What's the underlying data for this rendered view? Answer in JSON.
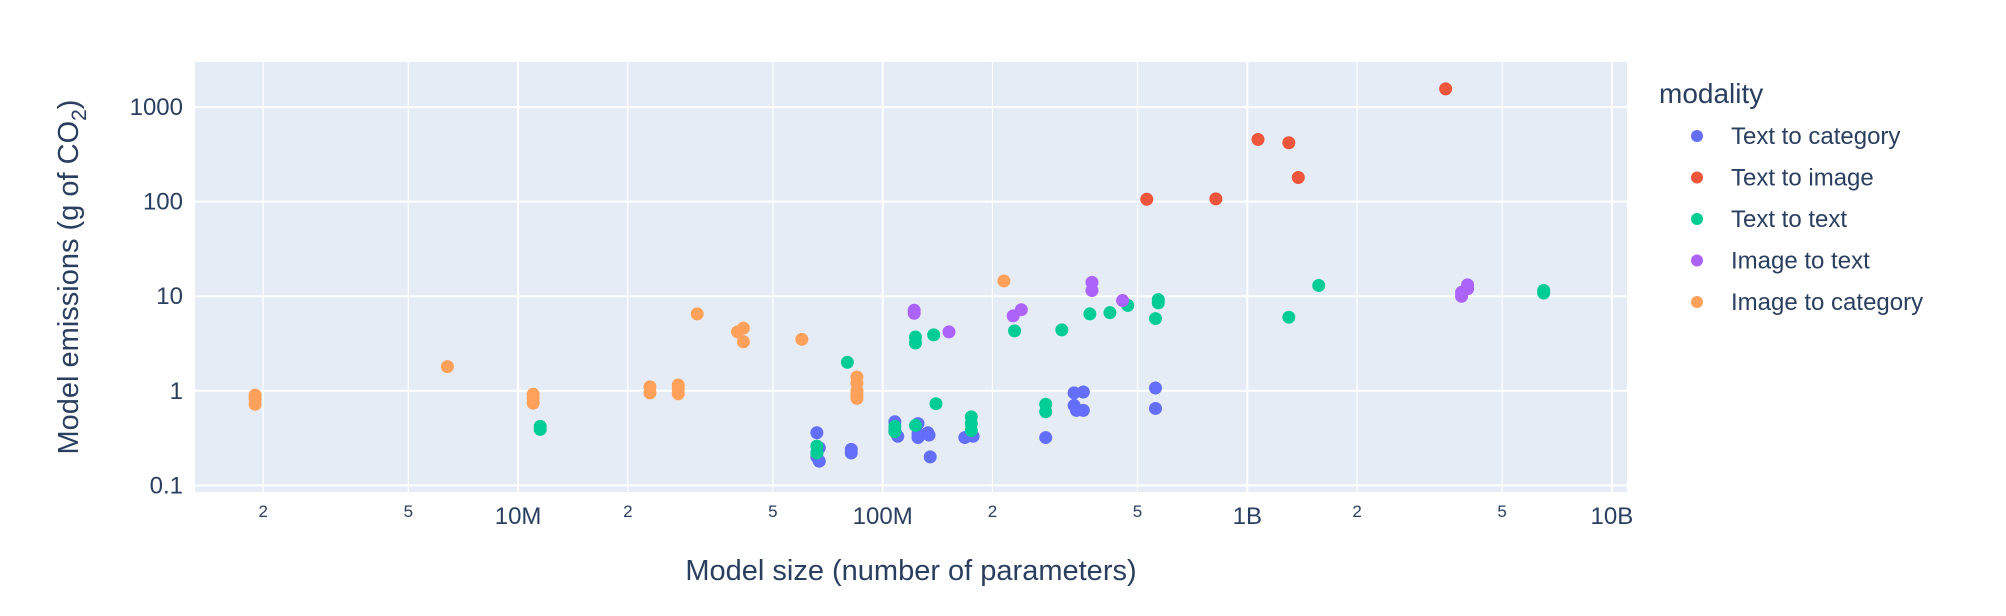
{
  "chart_data": {
    "type": "scatter",
    "xscale": "log",
    "yscale": "log",
    "xlim": [
      1300000,
      11000000000
    ],
    "ylim": [
      0.085,
      3000
    ],
    "xlabel": "Model size (number of parameters)",
    "ylabel_main": "Model emissions (g of CO",
    "ylabel_sub": "2",
    "ylabel_end": ")",
    "x_ticks": [
      {
        "value": 2000000,
        "label": "2",
        "major": false
      },
      {
        "value": 5000000,
        "label": "5",
        "major": false
      },
      {
        "value": 10000000,
        "label": "10M",
        "major": true
      },
      {
        "value": 20000000,
        "label": "2",
        "major": false
      },
      {
        "value": 50000000,
        "label": "5",
        "major": false
      },
      {
        "value": 100000000,
        "label": "100M",
        "major": true
      },
      {
        "value": 200000000,
        "label": "2",
        "major": false
      },
      {
        "value": 500000000,
        "label": "5",
        "major": false
      },
      {
        "value": 1000000000,
        "label": "1B",
        "major": true
      },
      {
        "value": 2000000000,
        "label": "2",
        "major": false
      },
      {
        "value": 5000000000,
        "label": "5",
        "major": false
      },
      {
        "value": 10000000000,
        "label": "10B",
        "major": true
      }
    ],
    "y_ticks": [
      {
        "value": 0.1,
        "label": "0.1"
      },
      {
        "value": 1,
        "label": "1"
      },
      {
        "value": 10,
        "label": "10"
      },
      {
        "value": 100,
        "label": "100"
      },
      {
        "value": 1000,
        "label": "1000"
      }
    ],
    "legend_title": "modality",
    "series": [
      {
        "name": "Text to category",
        "color": "#636efa",
        "points": [
          [
            66000000,
            0.36
          ],
          [
            66000000,
            0.22
          ],
          [
            66000000,
            0.2
          ],
          [
            67000000,
            0.18
          ],
          [
            67000000,
            0.25
          ],
          [
            82000000,
            0.24
          ],
          [
            82000000,
            0.22
          ],
          [
            108000000,
            0.47
          ],
          [
            108000000,
            0.38
          ],
          [
            110000000,
            0.33
          ],
          [
            125000000,
            0.45
          ],
          [
            125000000,
            0.35
          ],
          [
            125000000,
            0.32
          ],
          [
            133000000,
            0.36
          ],
          [
            134000000,
            0.34
          ],
          [
            135000000,
            0.2
          ],
          [
            168000000,
            0.32
          ],
          [
            175000000,
            0.35
          ],
          [
            177000000,
            0.33
          ],
          [
            280000000,
            0.32
          ],
          [
            335000000,
            0.95
          ],
          [
            335000000,
            0.7
          ],
          [
            340000000,
            0.62
          ],
          [
            355000000,
            0.97
          ],
          [
            355000000,
            0.62
          ],
          [
            560000000,
            1.07
          ],
          [
            560000000,
            0.65
          ]
        ]
      },
      {
        "name": "Text to image",
        "color": "#ef553b",
        "points": [
          [
            530000000,
            106
          ],
          [
            820000000,
            107
          ],
          [
            1070000000,
            455
          ],
          [
            1300000000,
            420
          ],
          [
            1380000000,
            180
          ],
          [
            3500000000,
            1560
          ]
        ]
      },
      {
        "name": "Text to text",
        "color": "#00cc96",
        "points": [
          [
            11500000,
            0.42
          ],
          [
            11500000,
            0.39
          ],
          [
            66000000,
            0.26
          ],
          [
            66000000,
            0.22
          ],
          [
            80000000,
            2.0
          ],
          [
            108000000,
            0.42
          ],
          [
            108000000,
            0.37
          ],
          [
            123000000,
            3.7
          ],
          [
            123000000,
            3.2
          ],
          [
            123000000,
            0.43
          ],
          [
            138000000,
            3.9
          ],
          [
            140000000,
            0.73
          ],
          [
            175000000,
            0.53
          ],
          [
            175000000,
            0.45
          ],
          [
            175000000,
            0.38
          ],
          [
            230000000,
            4.3
          ],
          [
            280000000,
            0.72
          ],
          [
            280000000,
            0.6
          ],
          [
            310000000,
            4.4
          ],
          [
            370000000,
            6.5
          ],
          [
            420000000,
            6.7
          ],
          [
            470000000,
            8.0
          ],
          [
            560000000,
            5.8
          ],
          [
            570000000,
            9.2
          ],
          [
            570000000,
            8.5
          ],
          [
            1300000000,
            6.0
          ],
          [
            1570000000,
            13.0
          ],
          [
            6500000000,
            11.5
          ],
          [
            6500000000,
            10.8
          ]
        ]
      },
      {
        "name": "Image to text",
        "color": "#ab63fa",
        "points": [
          [
            122000000,
            7.1
          ],
          [
            122000000,
            6.6
          ],
          [
            152000000,
            4.2
          ],
          [
            228000000,
            6.2
          ],
          [
            240000000,
            7.2
          ],
          [
            375000000,
            14
          ],
          [
            375000000,
            11.5
          ],
          [
            455000000,
            9.0
          ],
          [
            3870000000,
            11
          ],
          [
            3870000000,
            10
          ],
          [
            4020000000,
            13.2
          ],
          [
            4020000000,
            12
          ]
        ]
      },
      {
        "name": "Image to category",
        "color": "#ffa15a",
        "points": [
          [
            1900000,
            0.9
          ],
          [
            1900000,
            0.82
          ],
          [
            1900000,
            0.72
          ],
          [
            6400000,
            1.8
          ],
          [
            11000000,
            0.92
          ],
          [
            11000000,
            0.83
          ],
          [
            11000000,
            0.74
          ],
          [
            23000000,
            1.1
          ],
          [
            23000000,
            0.95
          ],
          [
            27500000,
            1.15
          ],
          [
            27500000,
            1.05
          ],
          [
            27500000,
            0.93
          ],
          [
            31000000,
            6.5
          ],
          [
            40000000,
            4.2
          ],
          [
            41500000,
            4.6
          ],
          [
            41500000,
            3.3
          ],
          [
            60000000,
            3.5
          ],
          [
            85000000,
            1.4
          ],
          [
            85000000,
            1.2
          ],
          [
            85000000,
            1.0
          ],
          [
            85000000,
            0.9
          ],
          [
            85000000,
            0.83
          ],
          [
            215000000,
            14.5
          ]
        ]
      }
    ]
  }
}
